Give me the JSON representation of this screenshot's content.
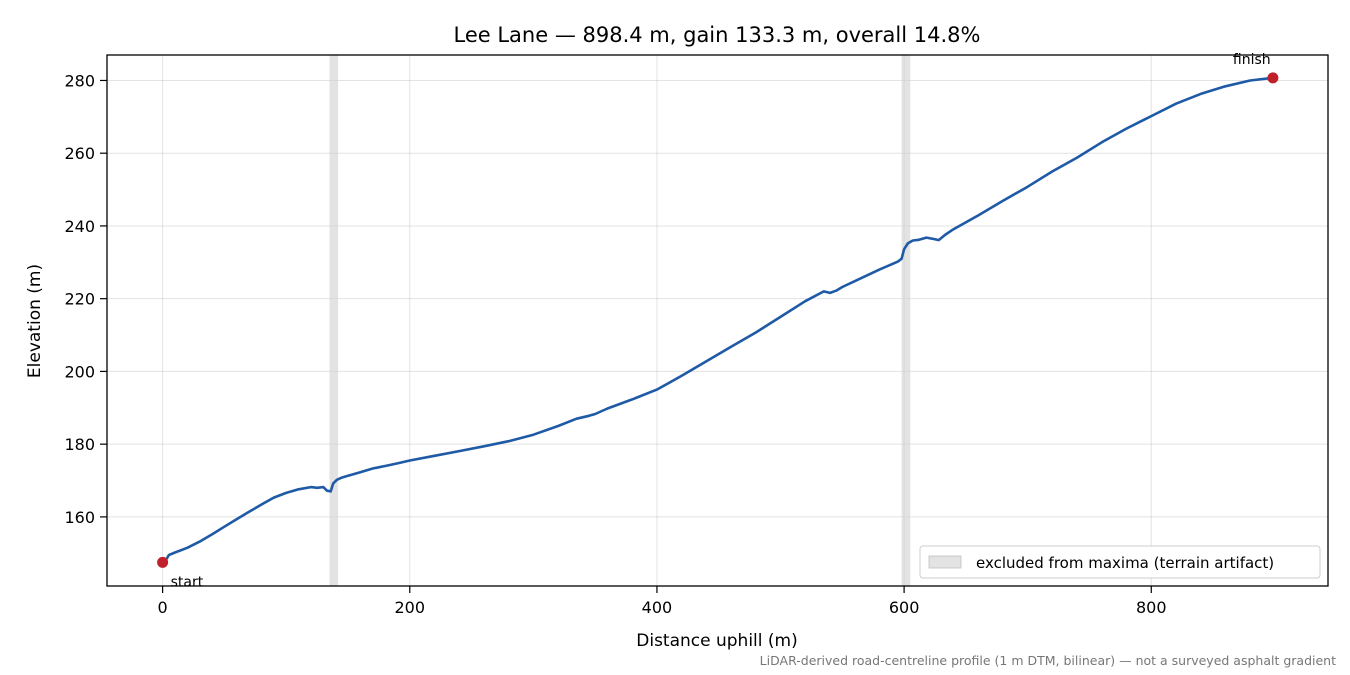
{
  "chart_data": {
    "type": "line",
    "title": "Lee Lane — 898.4 m, gain 133.3 m, overall 14.8%",
    "xlabel": "Distance uphill (m)",
    "ylabel": "Elevation (m)",
    "xlim": [
      -45,
      943
    ],
    "ylim": [
      141,
      287
    ],
    "xticks": [
      0,
      200,
      400,
      600,
      800
    ],
    "yticks": [
      160,
      180,
      200,
      220,
      240,
      260,
      280
    ],
    "grid": true,
    "legend_position": "bottom-right",
    "line_color": "#1f5aa6",
    "marker_color": "#c0202a",
    "band_color": "#d0d0d0",
    "series": [
      {
        "x": [
          0,
          3,
          5,
          10,
          20,
          30,
          40,
          50,
          60,
          70,
          80,
          90,
          100,
          110,
          120,
          125,
          130,
          133,
          136,
          138,
          141,
          145,
          150,
          160,
          170,
          180,
          190,
          200,
          220,
          240,
          260,
          280,
          300,
          320,
          335,
          345,
          350,
          360,
          380,
          400,
          420,
          440,
          460,
          480,
          500,
          520,
          535,
          540,
          545,
          550,
          560,
          580,
          595,
          598,
          600,
          603,
          607,
          612,
          618,
          624,
          628,
          633,
          640,
          660,
          680,
          700,
          720,
          740,
          760,
          780,
          800,
          820,
          840,
          860,
          880,
          898.4
        ],
        "y": [
          147.5,
          148.3,
          149.5,
          150.2,
          151.5,
          153.2,
          155.2,
          157.3,
          159.4,
          161.4,
          163.4,
          165.3,
          166.6,
          167.6,
          168.2,
          168.0,
          168.2,
          167.2,
          167.0,
          169.2,
          170.2,
          170.8,
          171.3,
          172.3,
          173.3,
          174.0,
          174.7,
          175.5,
          176.8,
          178.1,
          179.4,
          180.8,
          182.6,
          185.0,
          187.0,
          187.8,
          188.3,
          189.8,
          192.3,
          195.0,
          198.8,
          202.8,
          206.8,
          210.7,
          215.0,
          219.3,
          222.0,
          221.6,
          222.2,
          223.2,
          224.8,
          228.0,
          230.2,
          231.0,
          233.6,
          235.2,
          236.0,
          236.2,
          236.8,
          236.4,
          236.1,
          237.5,
          239.1,
          242.9,
          246.9,
          250.8,
          255.0,
          258.8,
          263.0,
          266.8,
          270.2,
          273.6,
          276.3,
          278.4,
          280.0,
          280.7
        ]
      }
    ],
    "excluded_ranges": [
      [
        135,
        142
      ],
      [
        598,
        605
      ]
    ],
    "points": [
      {
        "label": "start",
        "x": 0,
        "y": 147.5
      },
      {
        "label": "finish",
        "x": 898.4,
        "y": 280.7
      }
    ],
    "legend": [
      "excluded from maxima (terrain artifact)"
    ],
    "footnote": "LiDAR-derived road-centreline profile (1 m DTM, bilinear) — not a surveyed asphalt gradient"
  }
}
